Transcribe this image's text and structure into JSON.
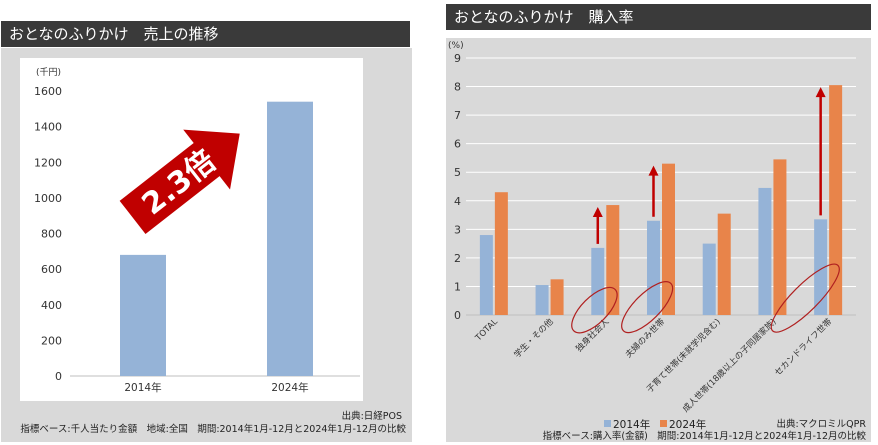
{
  "colors": {
    "title_bg": "#3a3a3a",
    "panel_bg": "#d9d9d9",
    "bar_blue": "#95b3d7",
    "bar_orange": "#e8844a",
    "arrow_red": "#c00000",
    "circle_red": "#b02020"
  },
  "left_panel": {
    "title": "おとなのふりかけ　売上の推移",
    "source": "出典:日経POS",
    "note": "指標ベース:千人当たり金額　地域:全国　期間:2014年1月-12月と2024年1月-12月の比較",
    "callout": "2.3倍"
  },
  "right_panel": {
    "title": "おとなのふりかけ　購入率",
    "source": "出典:マクロミルQPR",
    "note": "指標ベース:購入率(金額)　期間:2014年1月-12月と2024年1月-12月の比較"
  },
  "chart_data": [
    {
      "type": "bar",
      "unit_label": "(千円)",
      "categories": [
        "2014年",
        "2024年"
      ],
      "values": [
        680,
        1540
      ],
      "ylim": [
        0,
        1600
      ],
      "yticks": [
        "0",
        "200",
        "400",
        "600",
        "800",
        "1000",
        "1200",
        "1400",
        "1600"
      ],
      "grid": false
    },
    {
      "type": "bar",
      "unit_label": "(%)",
      "categories": [
        "TOTAL",
        "学生・その他",
        "独身社会人",
        "夫婦のみ世帯",
        "子育て世帯(未就学児含む)",
        "成人世帯(18歳以上の子同居家族)",
        "セカンドライフ世帯"
      ],
      "series": [
        {
          "name": "2014年",
          "values": [
            2.8,
            1.05,
            2.35,
            3.3,
            2.5,
            4.45,
            3.35
          ]
        },
        {
          "name": "2024年",
          "values": [
            4.3,
            1.25,
            3.85,
            5.3,
            3.55,
            5.45,
            8.05
          ]
        }
      ],
      "ylim": [
        0,
        9
      ],
      "yticks": [
        "0",
        "1",
        "2",
        "3",
        "4",
        "5",
        "6",
        "7",
        "8",
        "9"
      ],
      "highlighted_categories": [
        "独身社会人",
        "夫婦のみ世帯",
        "セカンドライフ世帯"
      ],
      "grid": true,
      "legend": "bottom"
    }
  ]
}
